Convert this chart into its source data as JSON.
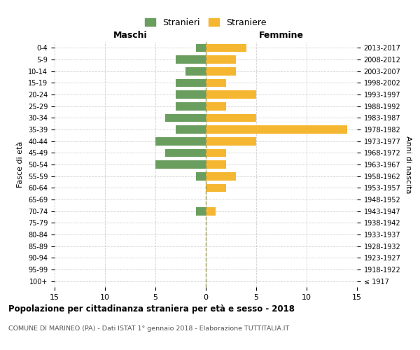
{
  "age_groups": [
    "100+",
    "95-99",
    "90-94",
    "85-89",
    "80-84",
    "75-79",
    "70-74",
    "65-69",
    "60-64",
    "55-59",
    "50-54",
    "45-49",
    "40-44",
    "35-39",
    "30-34",
    "25-29",
    "20-24",
    "15-19",
    "10-14",
    "5-9",
    "0-4"
  ],
  "birth_years": [
    "≤ 1917",
    "1918-1922",
    "1923-1927",
    "1928-1932",
    "1933-1937",
    "1938-1942",
    "1943-1947",
    "1948-1952",
    "1953-1957",
    "1958-1962",
    "1963-1967",
    "1968-1972",
    "1973-1977",
    "1978-1982",
    "1983-1987",
    "1988-1992",
    "1993-1997",
    "1998-2002",
    "2003-2007",
    "2008-2012",
    "2013-2017"
  ],
  "males": [
    0,
    0,
    0,
    0,
    0,
    0,
    1,
    0,
    0,
    1,
    5,
    4,
    5,
    3,
    4,
    3,
    3,
    3,
    2,
    3,
    1
  ],
  "females": [
    0,
    0,
    0,
    0,
    0,
    0,
    1,
    0,
    2,
    3,
    2,
    2,
    5,
    14,
    5,
    2,
    5,
    2,
    3,
    3,
    4
  ],
  "male_color": "#6a9e5e",
  "female_color": "#f5b731",
  "title": "Popolazione per cittadinanza straniera per età e sesso - 2018",
  "subtitle": "COMUNE DI MARINEO (PA) - Dati ISTAT 1° gennaio 2018 - Elaborazione TUTTITALIA.IT",
  "left_label": "Maschi",
  "right_label": "Femmine",
  "ylabel_left": "Fasce di età",
  "ylabel_right": "Anni di nascita",
  "legend_male": "Stranieri",
  "legend_female": "Straniere",
  "xlim": 15,
  "background_color": "#ffffff",
  "grid_color": "#cccccc"
}
